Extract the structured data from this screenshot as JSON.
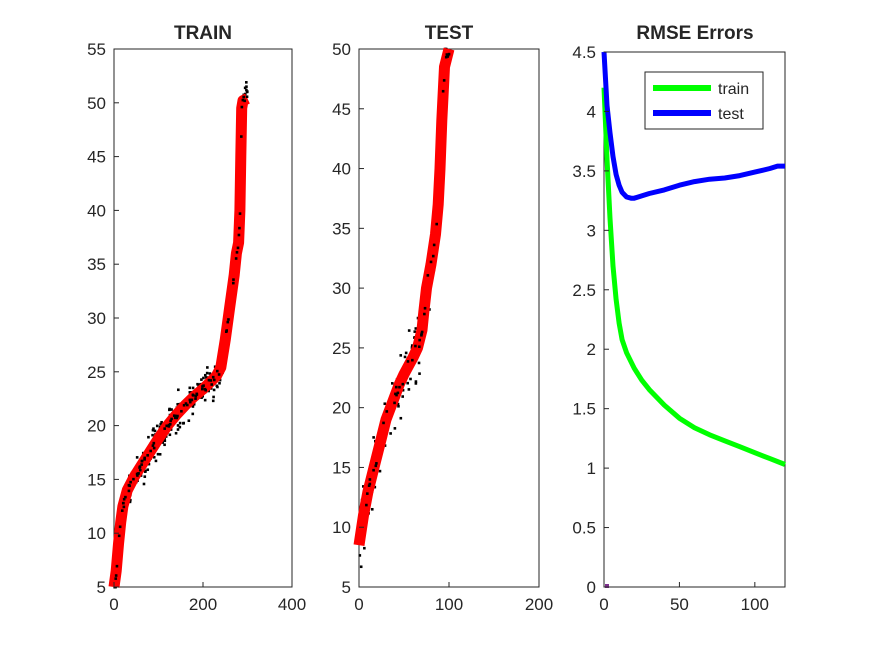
{
  "chart_data": [
    {
      "type": "scatter",
      "title": "TRAIN",
      "xlabel": "",
      "ylabel": "",
      "xlim": [
        0,
        400
      ],
      "ylim": [
        5,
        55
      ],
      "xticks": [
        0,
        200,
        400
      ],
      "yticks": [
        5,
        10,
        15,
        20,
        25,
        30,
        35,
        40,
        45,
        50,
        55
      ],
      "grid": false,
      "fit_color": "#ff0000",
      "point_color": "#000000",
      "fit_line": {
        "x": [
          0,
          5,
          10,
          15,
          20,
          30,
          45,
          60,
          80,
          100,
          120,
          140,
          160,
          180,
          200,
          220,
          230,
          240,
          250,
          260,
          270,
          275,
          280,
          283,
          285,
          287,
          290,
          300
        ],
        "y": [
          5,
          6.5,
          9,
          11,
          12.5,
          14,
          15.2,
          16.2,
          17.5,
          18.8,
          20,
          21,
          21.9,
          22.7,
          23.4,
          24.2,
          24.6,
          25.4,
          28,
          31,
          34,
          36,
          37,
          40,
          45,
          49.5,
          50.2,
          50.4
        ]
      },
      "points_note": "scattered black observations along the fit line"
    },
    {
      "type": "scatter",
      "title": "TEST",
      "xlabel": "",
      "ylabel": "",
      "xlim": [
        0,
        200
      ],
      "ylim": [
        5,
        50
      ],
      "xticks": [
        0,
        100,
        200
      ],
      "yticks": [
        5,
        10,
        15,
        20,
        25,
        30,
        35,
        40,
        45,
        50
      ],
      "grid": false,
      "fit_color": "#ff0000",
      "point_color": "#000000",
      "fit_line": {
        "x": [
          0,
          5,
          10,
          15,
          20,
          25,
          30,
          35,
          40,
          45,
          50,
          55,
          60,
          65,
          70,
          72,
          75,
          80,
          85,
          88,
          90,
          92,
          95,
          100
        ],
        "y": [
          8.5,
          11,
          13,
          14.5,
          16,
          17.5,
          19,
          20,
          21,
          22,
          22.8,
          23.5,
          24.2,
          25,
          26.5,
          28,
          30,
          32,
          34.5,
          37,
          40,
          44,
          48.5,
          50
        ]
      }
    },
    {
      "type": "line",
      "title": "RMSE Errors",
      "xlabel": "",
      "ylabel": "",
      "xlim": [
        0,
        120
      ],
      "ylim": [
        0,
        4.5
      ],
      "xticks": [
        0,
        50,
        100
      ],
      "yticks": [
        0,
        0.5,
        1,
        1.5,
        2,
        2.5,
        3,
        3.5,
        4,
        4.5
      ],
      "grid": false,
      "legend_position": "top-right",
      "series": [
        {
          "name": "train",
          "color": "#00ff00",
          "x": [
            0,
            2,
            4,
            6,
            8,
            10,
            12,
            15,
            20,
            25,
            30,
            40,
            50,
            60,
            70,
            80,
            90,
            100,
            110,
            120
          ],
          "y": [
            4.2,
            3.6,
            3.1,
            2.7,
            2.42,
            2.22,
            2.08,
            1.97,
            1.84,
            1.74,
            1.66,
            1.53,
            1.42,
            1.34,
            1.28,
            1.23,
            1.18,
            1.13,
            1.08,
            1.03
          ]
        },
        {
          "name": "test",
          "color": "#0000ff",
          "x": [
            0,
            2,
            4,
            6,
            8,
            10,
            12,
            15,
            18,
            20,
            25,
            30,
            40,
            50,
            60,
            70,
            80,
            90,
            100,
            110,
            115,
            120
          ],
          "y": [
            4.5,
            4.05,
            3.82,
            3.62,
            3.47,
            3.38,
            3.32,
            3.28,
            3.27,
            3.27,
            3.29,
            3.31,
            3.34,
            3.38,
            3.41,
            3.43,
            3.44,
            3.46,
            3.49,
            3.52,
            3.54,
            3.54
          ]
        }
      ]
    }
  ]
}
